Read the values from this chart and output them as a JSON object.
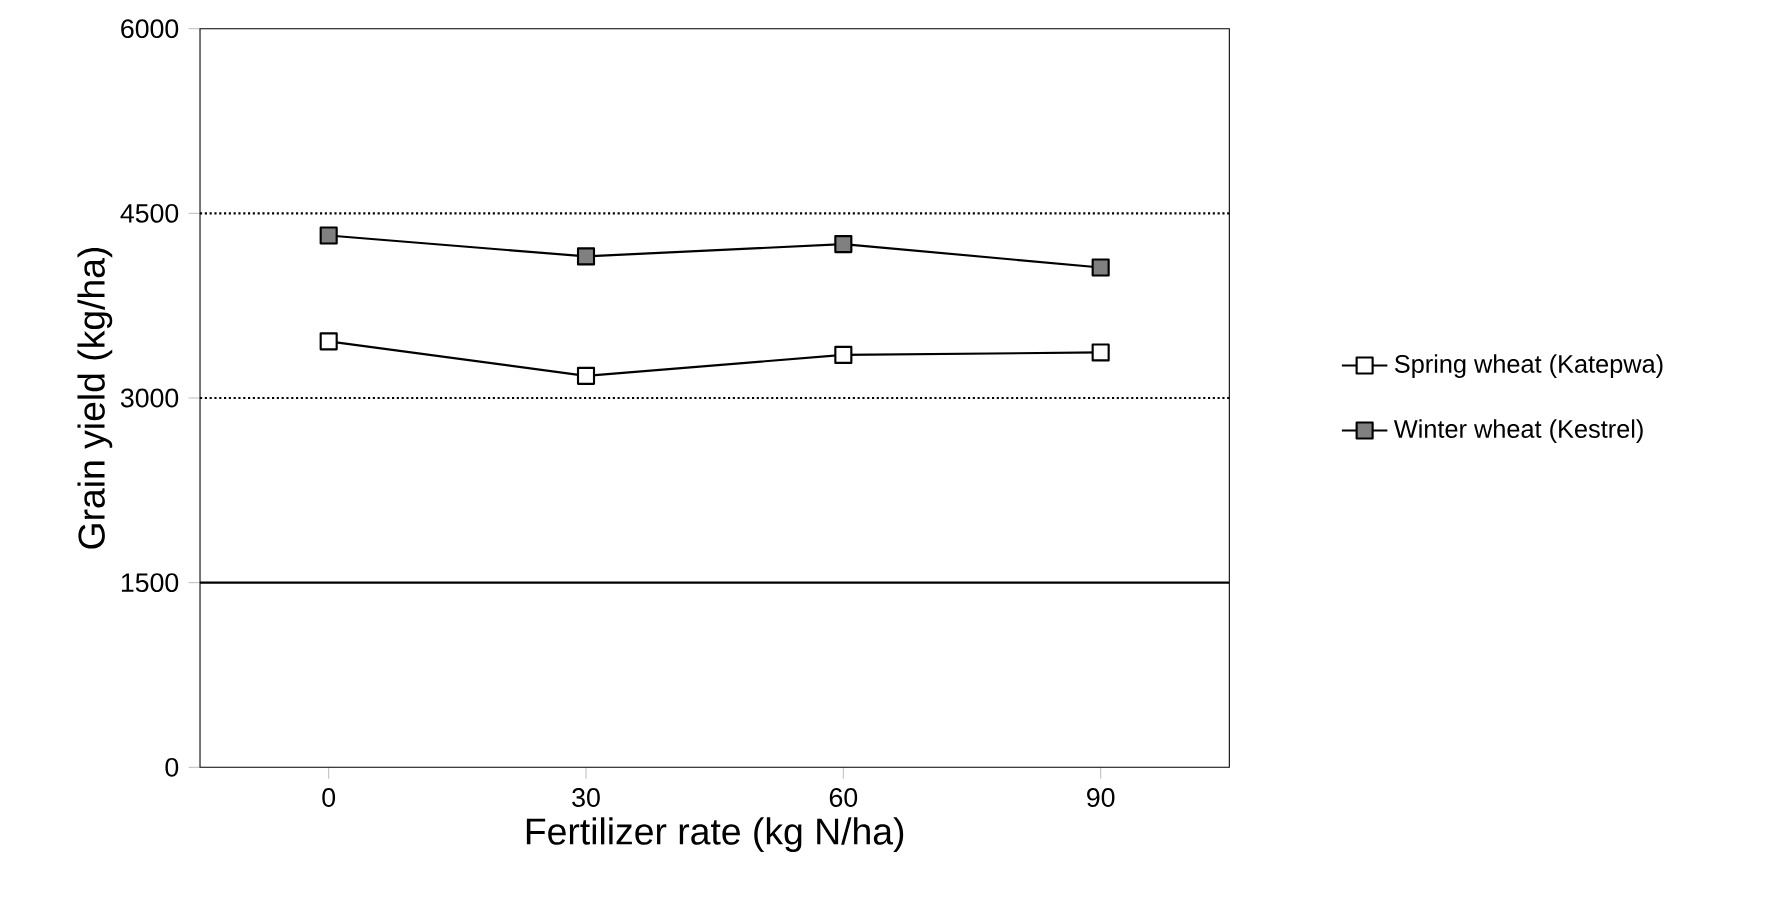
{
  "chart_data": {
    "type": "line",
    "xlabel": "Fertilizer rate (kg N/ha)",
    "ylabel": "Grain yield (kg/ha)",
    "x": [
      0,
      30,
      60,
      90
    ],
    "xlim": [
      -15,
      105
    ],
    "xticks": [
      0,
      30,
      60,
      90
    ],
    "ylim": [
      0,
      6000
    ],
    "yticks": [
      0,
      1500,
      3000,
      4500,
      6000
    ],
    "series": [
      {
        "name": "Spring wheat (Katepwa)",
        "color": "#000000",
        "values": [
          3460,
          3180,
          3350,
          3370
        ]
      },
      {
        "name": "Winter wheat (Kestrel)",
        "color": "#000000",
        "values": [
          4320,
          4150,
          4250,
          4060
        ]
      }
    ],
    "ref_lines": [
      {
        "axis": "y",
        "value": 4500,
        "line_style": "dotted"
      },
      {
        "axis": "y",
        "value": 3000,
        "line_style": "dotted"
      },
      {
        "axis": "y",
        "value": 1500,
        "line_style": "solid"
      }
    ],
    "marker": "square",
    "line_style": "solid",
    "legend": "right",
    "grid": false
  }
}
